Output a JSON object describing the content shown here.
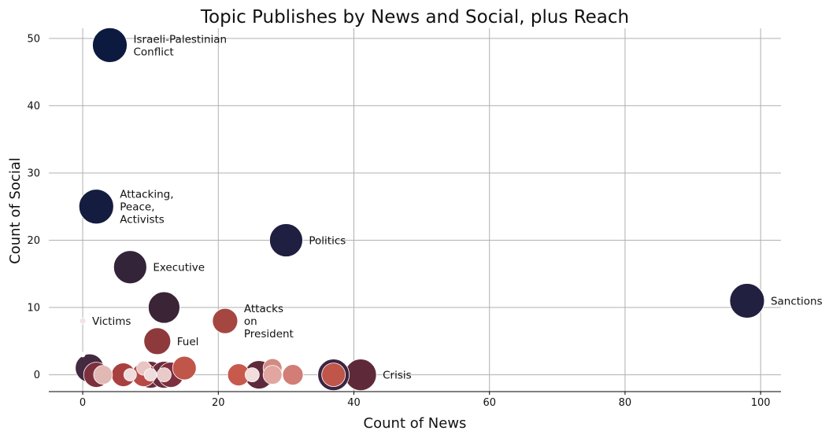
{
  "chart_data": {
    "type": "scatter",
    "title": "Topic Publishes by News and Social, plus Reach",
    "xlabel": "Count of News",
    "ylabel": "Count of Social",
    "xlim": [
      -5,
      103
    ],
    "ylim": [
      -2.5,
      51.5
    ],
    "xticks": [
      0,
      20,
      40,
      60,
      80,
      100
    ],
    "yticks": [
      0,
      10,
      20,
      30,
      40,
      50
    ],
    "grid": true,
    "legend": "none",
    "points": [
      {
        "x": 4,
        "y": 49,
        "r": 22,
        "color": "#0c1a40",
        "label": "Israeli-Palestinian\nConflict"
      },
      {
        "x": 2,
        "y": 25,
        "r": 22,
        "color": "#141c40",
        "label": "Attacking,\nPeace,\nActivists"
      },
      {
        "x": 30,
        "y": 20,
        "r": 21,
        "color": "#1f1f42",
        "label": "Politics"
      },
      {
        "x": 98,
        "y": 11,
        "r": 22,
        "color": "#222040",
        "label": "Sanctions"
      },
      {
        "x": 7,
        "y": 16,
        "r": 21,
        "color": "#33243a",
        "label": "Executive"
      },
      {
        "x": 12,
        "y": 10,
        "r": 20,
        "color": "#3a2436",
        "label": ""
      },
      {
        "x": 21,
        "y": 8,
        "r": 16,
        "color": "#a64641",
        "label": "Attacks\non\nPresident"
      },
      {
        "x": 0,
        "y": 8,
        "r": 4,
        "color": "#f3e3e3",
        "label": "Victims"
      },
      {
        "x": 11,
        "y": 5,
        "r": 17,
        "color": "#8e3a3c",
        "label": "Fuel"
      },
      {
        "x": 41,
        "y": 0,
        "r": 20,
        "color": "#5e2a3a",
        "label": "Crisis"
      },
      {
        "x": 37,
        "y": 0,
        "r": 20,
        "color": "#3d2440",
        "label": ""
      },
      {
        "x": 37,
        "y": 0,
        "r": 15,
        "color": "#c0554a",
        "label": ""
      },
      {
        "x": 0,
        "y": 3,
        "r": 3,
        "color": "#ffffff",
        "label": ""
      },
      {
        "x": 1,
        "y": 1,
        "r": 18,
        "color": "#432a40",
        "label": ""
      },
      {
        "x": 2,
        "y": 0,
        "r": 16,
        "color": "#7e2f3e",
        "label": ""
      },
      {
        "x": 3,
        "y": 0,
        "r": 12,
        "color": "#e2b8b5",
        "label": ""
      },
      {
        "x": 6,
        "y": 0,
        "r": 15,
        "color": "#a94040",
        "label": ""
      },
      {
        "x": 7,
        "y": 0,
        "r": 8,
        "color": "#f0dcdc",
        "label": ""
      },
      {
        "x": 9,
        "y": 1,
        "r": 9,
        "color": "#e8c4c2",
        "label": ""
      },
      {
        "x": 10,
        "y": 0,
        "r": 17,
        "color": "#6a2c3c",
        "label": ""
      },
      {
        "x": 12,
        "y": 0,
        "r": 17,
        "color": "#6a2c3c",
        "label": ""
      },
      {
        "x": 13,
        "y": 0,
        "r": 16,
        "color": "#7e2f3e",
        "label": ""
      },
      {
        "x": 9,
        "y": 0,
        "r": 15,
        "color": "#b84a45",
        "label": ""
      },
      {
        "x": 10,
        "y": 0,
        "r": 8,
        "color": "#f0dcdc",
        "label": ""
      },
      {
        "x": 12,
        "y": 0,
        "r": 9,
        "color": "#e8cac8",
        "label": ""
      },
      {
        "x": 15,
        "y": 1,
        "r": 15,
        "color": "#c0554a",
        "label": ""
      },
      {
        "x": 23,
        "y": 0,
        "r": 14,
        "color": "#c85a4d",
        "label": ""
      },
      {
        "x": 25,
        "y": 0,
        "r": 9,
        "color": "#f2dcdc",
        "label": ""
      },
      {
        "x": 26,
        "y": 0,
        "r": 18,
        "color": "#5e2a3a",
        "label": ""
      },
      {
        "x": 28,
        "y": 1,
        "r": 12,
        "color": "#d28a82",
        "label": ""
      },
      {
        "x": 28,
        "y": 0,
        "r": 12,
        "color": "#e2a6a0",
        "label": ""
      },
      {
        "x": 31,
        "y": 0,
        "r": 13,
        "color": "#d27d75",
        "label": ""
      }
    ]
  }
}
